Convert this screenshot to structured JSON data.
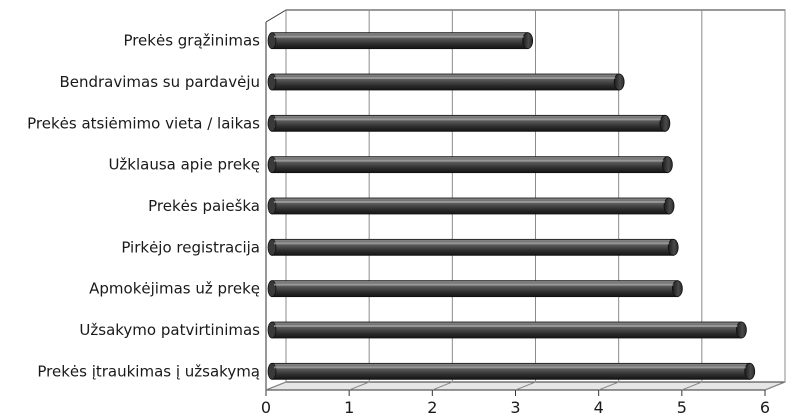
{
  "chart_data": {
    "type": "bar",
    "orientation": "horizontal",
    "categories": [
      "Prekės grąžinimas",
      "Bendravimas su pardavėju",
      "Prekės atsiėmimo vieta / laikas",
      "Užklausa apie prekę",
      "Prekės paieška",
      "Pirkėjo registracija",
      "Apmokėjimas už prekę",
      "Užsakymo patvirtinimas",
      "Prekės įtraukimas į užsakymą"
    ],
    "values": [
      3.05,
      4.15,
      4.7,
      4.73,
      4.75,
      4.8,
      4.85,
      5.62,
      5.72
    ],
    "title": "",
    "xlabel": "",
    "ylabel": "",
    "xlim": [
      0,
      6
    ],
    "xticks": [
      "0",
      "1",
      "2",
      "3",
      "4",
      "5",
      "6"
    ],
    "grid": "vertical",
    "legend": "none",
    "colors": {
      "bar_dark": "#2b2b2b",
      "bar_mid": "#5a5a5a",
      "bar_light": "#9a9a9a",
      "grid": "#8c8c8c",
      "frame": "#333333"
    }
  }
}
